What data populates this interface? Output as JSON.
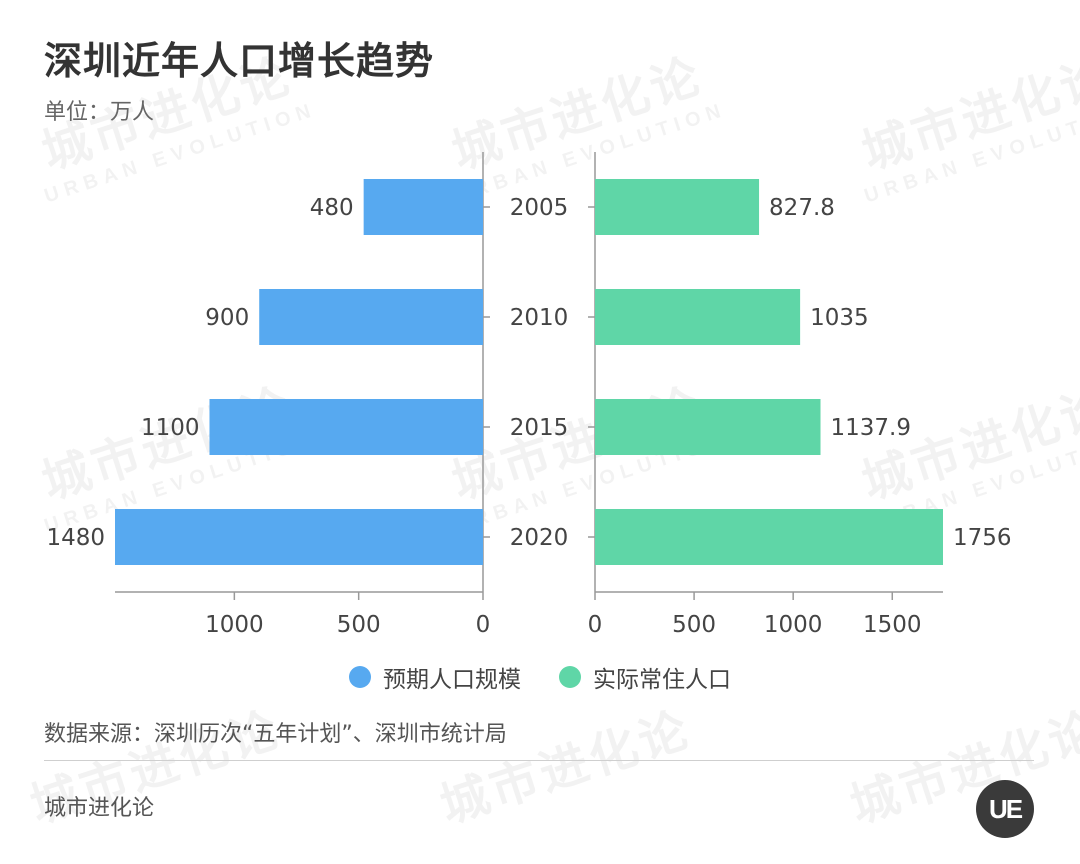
{
  "header": {
    "title": "深圳近年人口增长趋势",
    "unit": "单位：万人"
  },
  "chart_data": {
    "type": "bar",
    "orientation": "horizontal-butterfly",
    "categories": [
      "2005",
      "2010",
      "2015",
      "2020"
    ],
    "series": [
      {
        "name": "预期人口规模",
        "values": [
          480,
          900,
          1100,
          1480
        ],
        "color": "#57a9f0",
        "side": "left",
        "xlim": [
          0,
          1480
        ],
        "ticks": [
          0,
          500,
          1000
        ]
      },
      {
        "name": "实际常住人口",
        "values": [
          827.8,
          1035,
          1137.9,
          1756
        ],
        "color": "#5fd6a7",
        "side": "right",
        "xlim": [
          0,
          1756
        ],
        "ticks": [
          0,
          500,
          1000,
          1500
        ]
      }
    ],
    "value_labels_left": [
      "480",
      "900",
      "1100",
      "1480"
    ],
    "value_labels_right": [
      "827.8",
      "1035",
      "1137.9",
      "1756"
    ],
    "legend_position": "bottom-center",
    "grid": false
  },
  "legend": [
    {
      "label": "预期人口规模",
      "color": "#57a9f0"
    },
    {
      "label": "实际常住人口",
      "color": "#5fd6a7"
    }
  ],
  "source": "数据来源：深圳历次“五年计划”、深圳市统计局",
  "footer": {
    "brand": "城市进化论",
    "logo_text": "UE"
  },
  "watermark": {
    "cn": "城市进化论",
    "en": "URBAN EVOLUTION"
  }
}
